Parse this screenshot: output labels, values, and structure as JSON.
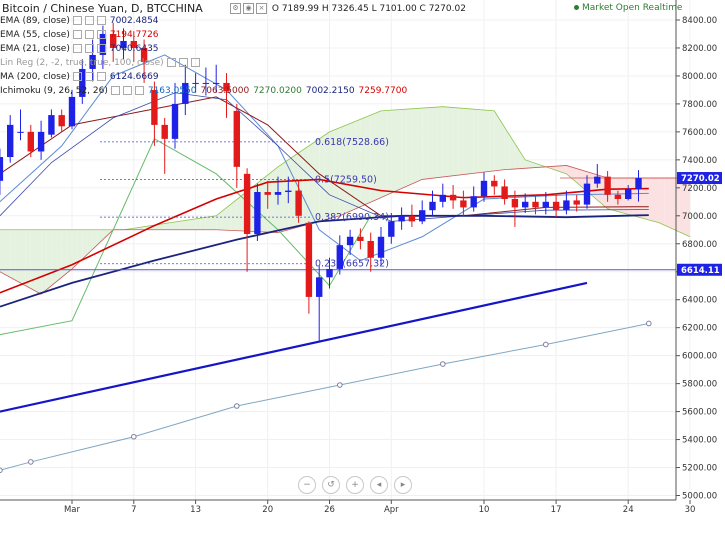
{
  "header": {
    "title": "Bitcoin / Chinese Yuan, D, BTCCHINA",
    "ohlc": "O 7189.99 H 7326.45 L 7101.00 C 7270.02",
    "status": "Market Open Realtime"
  },
  "legend": [
    {
      "label": "EMA (89, close)",
      "values": [
        "7002.4854"
      ],
      "colors": [
        "#1a237e"
      ]
    },
    {
      "label": "EMA (55, close)",
      "values": [
        "7194.7726"
      ],
      "colors": [
        "#d50000"
      ]
    },
    {
      "label": "EMA (21, close)",
      "values": [
        "7040.6435"
      ],
      "colors": [
        "#1a237e"
      ]
    },
    {
      "label": "Lin Reg (2, -2, true, true, 100, close)",
      "values": [],
      "colors": []
    },
    {
      "label": "MA (200, close)",
      "values": [
        "6124.6669"
      ],
      "colors": [
        "#1a237e"
      ]
    },
    {
      "label": "Ichimoku (9, 26, 52, 26)",
      "values": [
        "7163.0550",
        "7063.5000",
        "7270.0200",
        "7002.2150",
        "7259.7700"
      ],
      "colors": [
        "#1565c0",
        "#8b1a1a",
        "#2e7d32",
        "#1a237e",
        "#d50000"
      ]
    }
  ],
  "nav_buttons": [
    "minus-icon",
    "reset-icon",
    "plus-icon",
    "back-icon",
    "forward-icon"
  ],
  "colors": {
    "up": "#1e22e6",
    "down": "#e21a1a",
    "cloud_bull": "#e6f2e0",
    "cloud_bear": "#fbe1e1",
    "ema89": "#1a237e",
    "ema55": "#d50000",
    "ma200": "#7fa7c2",
    "trend": "#1414c8"
  },
  "chart_data": {
    "type": "candlestick",
    "y_axis": {
      "min": 5000,
      "max": 8400,
      "step": 200,
      "position": "right",
      "ticks": [
        "8400.00",
        "8200.00",
        "8000.00",
        "7800.00",
        "7600.00",
        "7400.00",
        "7200.00",
        "7000.00",
        "6800.00",
        "6600.00",
        "6400.00",
        "6200.00",
        "6000.00",
        "5800.00",
        "5600.00",
        "5400.00",
        "5200.00",
        "5000.00"
      ]
    },
    "x_axis": {
      "labels": [
        {
          "text": "Mar",
          "day": 0
        },
        {
          "text": "7",
          "day": 6
        },
        {
          "text": "13",
          "day": 12
        },
        {
          "text": "20",
          "day": 19
        },
        {
          "text": "26",
          "day": 25
        },
        {
          "text": "Apr",
          "day": 31
        },
        {
          "text": "10",
          "day": 40
        },
        {
          "text": "17",
          "day": 47
        },
        {
          "text": "24",
          "day": 54
        },
        {
          "text": "30",
          "day": 60
        }
      ]
    },
    "candles": [
      {
        "d": -7,
        "o": 7250,
        "c": 7420,
        "h": 7480,
        "l": 7150
      },
      {
        "d": -6,
        "o": 7420,
        "c": 7650,
        "h": 7720,
        "l": 7380
      },
      {
        "d": -5,
        "o": 7600,
        "c": 7600,
        "h": 7760,
        "l": 7540
      },
      {
        "d": -4,
        "o": 7600,
        "c": 7460,
        "h": 7650,
        "l": 7420
      },
      {
        "d": -3,
        "o": 7460,
        "c": 7600,
        "h": 7680,
        "l": 7400
      },
      {
        "d": -2,
        "o": 7580,
        "c": 7720,
        "h": 7760,
        "l": 7560
      },
      {
        "d": -1,
        "o": 7720,
        "c": 7640,
        "h": 7760,
        "l": 7600
      },
      {
        "d": 0,
        "o": 7640,
        "c": 7850,
        "h": 7900,
        "l": 7620
      },
      {
        "d": 1,
        "o": 7850,
        "c": 8050,
        "h": 8120,
        "l": 7800
      },
      {
        "d": 2,
        "o": 8050,
        "c": 8150,
        "h": 8260,
        "l": 7960
      },
      {
        "d": 3,
        "o": 8150,
        "c": 8300,
        "h": 8360,
        "l": 8050
      },
      {
        "d": 4,
        "o": 8300,
        "c": 8200,
        "h": 8380,
        "l": 8100
      },
      {
        "d": 5,
        "o": 8200,
        "c": 8250,
        "h": 8340,
        "l": 8120
      },
      {
        "d": 6,
        "o": 8250,
        "c": 8200,
        "h": 8320,
        "l": 8100
      },
      {
        "d": 7,
        "o": 8200,
        "c": 8100,
        "h": 8260,
        "l": 7950
      },
      {
        "d": 8,
        "o": 7900,
        "c": 7650,
        "h": 7960,
        "l": 7500
      },
      {
        "d": 9,
        "o": 7650,
        "c": 7550,
        "h": 7700,
        "l": 7300
      },
      {
        "d": 10,
        "o": 7550,
        "c": 7800,
        "h": 7950,
        "l": 7480
      },
      {
        "d": 11,
        "o": 7800,
        "c": 7950,
        "h": 8080,
        "l": 7720
      },
      {
        "d": 12,
        "o": 7950,
        "c": 7950,
        "h": 8020,
        "l": 7880
      },
      {
        "d": 13,
        "o": 7950,
        "c": 7950,
        "h": 8060,
        "l": 7860
      },
      {
        "d": 14,
        "o": 7950,
        "c": 7950,
        "h": 8080,
        "l": 7880
      },
      {
        "d": 15,
        "o": 7950,
        "c": 7890,
        "h": 8020,
        "l": 7700
      },
      {
        "d": 16,
        "o": 7750,
        "c": 7350,
        "h": 7800,
        "l": 7200
      },
      {
        "d": 17,
        "o": 7300,
        "c": 6870,
        "h": 7340,
        "l": 6600
      },
      {
        "d": 18,
        "o": 6870,
        "c": 7170,
        "h": 7230,
        "l": 6820
      },
      {
        "d": 19,
        "o": 7170,
        "c": 7150,
        "h": 7250,
        "l": 7050
      },
      {
        "d": 20,
        "o": 7150,
        "c": 7170,
        "h": 7280,
        "l": 7080
      },
      {
        "d": 21,
        "o": 7170,
        "c": 7180,
        "h": 7280,
        "l": 7090
      },
      {
        "d": 22,
        "o": 7180,
        "c": 7000,
        "h": 7250,
        "l": 6950
      },
      {
        "d": 23,
        "o": 6950,
        "c": 6420,
        "h": 6960,
        "l": 6300
      },
      {
        "d": 24,
        "o": 6420,
        "c": 6560,
        "h": 6640,
        "l": 6100
      },
      {
        "d": 25,
        "o": 6560,
        "c": 6620,
        "h": 6700,
        "l": 6480
      },
      {
        "d": 26,
        "o": 6620,
        "c": 6790,
        "h": 6860,
        "l": 6580
      },
      {
        "d": 27,
        "o": 6790,
        "c": 6850,
        "h": 6900,
        "l": 6720
      },
      {
        "d": 28,
        "o": 6850,
        "c": 6820,
        "h": 6910,
        "l": 6760
      },
      {
        "d": 29,
        "o": 6820,
        "c": 6700,
        "h": 6880,
        "l": 6600
      },
      {
        "d": 30,
        "o": 6700,
        "c": 6850,
        "h": 6920,
        "l": 6650
      },
      {
        "d": 31,
        "o": 6850,
        "c": 6960,
        "h": 7020,
        "l": 6800
      },
      {
        "d": 32,
        "o": 6960,
        "c": 7000,
        "h": 7060,
        "l": 6900
      },
      {
        "d": 33,
        "o": 7000,
        "c": 6960,
        "h": 7080,
        "l": 6920
      },
      {
        "d": 34,
        "o": 6960,
        "c": 7040,
        "h": 7110,
        "l": 6940
      },
      {
        "d": 35,
        "o": 7040,
        "c": 7100,
        "h": 7180,
        "l": 7000
      },
      {
        "d": 36,
        "o": 7100,
        "c": 7150,
        "h": 7230,
        "l": 7060
      },
      {
        "d": 37,
        "o": 7150,
        "c": 7110,
        "h": 7220,
        "l": 7050
      },
      {
        "d": 38,
        "o": 7110,
        "c": 7060,
        "h": 7180,
        "l": 7000
      },
      {
        "d": 39,
        "o": 7060,
        "c": 7140,
        "h": 7210,
        "l": 7030
      },
      {
        "d": 40,
        "o": 7140,
        "c": 7250,
        "h": 7310,
        "l": 7100
      },
      {
        "d": 41,
        "o": 7250,
        "c": 7210,
        "h": 7290,
        "l": 7150
      },
      {
        "d": 42,
        "o": 7210,
        "c": 7120,
        "h": 7260,
        "l": 7080
      },
      {
        "d": 43,
        "o": 7120,
        "c": 7060,
        "h": 7180,
        "l": 6920
      },
      {
        "d": 44,
        "o": 7060,
        "c": 7100,
        "h": 7160,
        "l": 7020
      },
      {
        "d": 45,
        "o": 7100,
        "c": 7060,
        "h": 7150,
        "l": 7010
      },
      {
        "d": 46,
        "o": 7060,
        "c": 7100,
        "h": 7170,
        "l": 7010
      },
      {
        "d": 47,
        "o": 7100,
        "c": 7040,
        "h": 7160,
        "l": 6990
      },
      {
        "d": 48,
        "o": 7040,
        "c": 7110,
        "h": 7180,
        "l": 7010
      },
      {
        "d": 49,
        "o": 7110,
        "c": 7080,
        "h": 7150,
        "l": 7030
      },
      {
        "d": 50,
        "o": 7080,
        "c": 7230,
        "h": 7290,
        "l": 7050
      },
      {
        "d": 51,
        "o": 7230,
        "c": 7280,
        "h": 7370,
        "l": 7200
      },
      {
        "d": 52,
        "o": 7280,
        "c": 7150,
        "h": 7320,
        "l": 7100
      },
      {
        "d": 53,
        "o": 7150,
        "c": 7120,
        "h": 7180,
        "l": 7080
      },
      {
        "d": 54,
        "o": 7120,
        "c": 7190,
        "h": 7220,
        "l": 7110
      },
      {
        "d": 55,
        "o": 7189.99,
        "c": 7270.02,
        "h": 7326.45,
        "l": 7101.0
      }
    ],
    "fib_levels": [
      {
        "label": "0.618(7528.66)",
        "value": 7528.66
      },
      {
        "label": "0.5(7259.50)",
        "value": 7259.5
      },
      {
        "label": "0.382(6990.34)",
        "value": 6990.34
      },
      {
        "label": "0.236(6657.32)",
        "value": 6657.32
      }
    ],
    "horizontal_line": 6614.11,
    "price_labels": [
      {
        "value": 7270.02,
        "text": "7270.02",
        "color": "#1e22e6"
      },
      {
        "value": 6614.11,
        "text": "6614.11",
        "color": "#1e22e6"
      }
    ],
    "trendline": {
      "from": {
        "d": -7,
        "v": 5600
      },
      "to": {
        "d": 50,
        "v": 6520
      }
    },
    "ma200": [
      {
        "d": -7,
        "v": 5180
      },
      {
        "d": -4,
        "v": 5240
      },
      {
        "d": 6,
        "v": 5420
      },
      {
        "d": 16,
        "v": 5640
      },
      {
        "d": 26,
        "v": 5790
      },
      {
        "d": 36,
        "v": 5940
      },
      {
        "d": 46,
        "v": 6080
      },
      {
        "d": 56,
        "v": 6230
      }
    ],
    "ema89": [
      {
        "d": -7,
        "v": 6350
      },
      {
        "d": 0,
        "v": 6520
      },
      {
        "d": 8,
        "v": 6680
      },
      {
        "d": 16,
        "v": 6830
      },
      {
        "d": 24,
        "v": 6960
      },
      {
        "d": 32,
        "v": 7000
      },
      {
        "d": 40,
        "v": 7000
      },
      {
        "d": 48,
        "v": 6990
      },
      {
        "d": 56,
        "v": 7005
      }
    ],
    "ema55": [
      {
        "d": -7,
        "v": 6450
      },
      {
        "d": 0,
        "v": 6650
      },
      {
        "d": 8,
        "v": 6930
      },
      {
        "d": 14,
        "v": 7120
      },
      {
        "d": 19,
        "v": 7240
      },
      {
        "d": 24,
        "v": 7260
      },
      {
        "d": 30,
        "v": 7180
      },
      {
        "d": 38,
        "v": 7130
      },
      {
        "d": 46,
        "v": 7150
      },
      {
        "d": 52,
        "v": 7190
      },
      {
        "d": 56,
        "v": 7195
      }
    ],
    "ema21": [
      {
        "d": -7,
        "v": 7000
      },
      {
        "d": -2,
        "v": 7380
      },
      {
        "d": 4,
        "v": 7700
      },
      {
        "d": 10,
        "v": 7880
      },
      {
        "d": 15,
        "v": 7830
      },
      {
        "d": 20,
        "v": 7500
      },
      {
        "d": 25,
        "v": 7150
      },
      {
        "d": 31,
        "v": 6960
      },
      {
        "d": 38,
        "v": 7000
      },
      {
        "d": 46,
        "v": 7040
      },
      {
        "d": 56,
        "v": 7045
      }
    ],
    "tenkan": [
      {
        "d": -7,
        "v": 7100
      },
      {
        "d": -1,
        "v": 7500
      },
      {
        "d": 4,
        "v": 8000
      },
      {
        "d": 9,
        "v": 8150
      },
      {
        "d": 15,
        "v": 7900
      },
      {
        "d": 20,
        "v": 7500
      },
      {
        "d": 24,
        "v": 6900
      },
      {
        "d": 28,
        "v": 6680
      },
      {
        "d": 34,
        "v": 6850
      },
      {
        "d": 40,
        "v": 7120
      },
      {
        "d": 48,
        "v": 7150
      },
      {
        "d": 56,
        "v": 7160
      }
    ],
    "kijun": [
      {
        "d": -7,
        "v": 7300
      },
      {
        "d": 0,
        "v": 7650
      },
      {
        "d": 7,
        "v": 7750
      },
      {
        "d": 14,
        "v": 7850
      },
      {
        "d": 19,
        "v": 7650
      },
      {
        "d": 24,
        "v": 7300
      },
      {
        "d": 30,
        "v": 7000
      },
      {
        "d": 38,
        "v": 7000
      },
      {
        "d": 46,
        "v": 7060
      },
      {
        "d": 56,
        "v": 7065
      }
    ],
    "cloud_a": [
      {
        "d": -7,
        "v": 6900
      },
      {
        "d": 5,
        "v": 6900
      },
      {
        "d": 14,
        "v": 7000
      },
      {
        "d": 20,
        "v": 7350
      },
      {
        "d": 25,
        "v": 7600
      },
      {
        "d": 30,
        "v": 7750
      },
      {
        "d": 36,
        "v": 7780
      },
      {
        "d": 41,
        "v": 7750
      },
      {
        "d": 44,
        "v": 7400
      },
      {
        "d": 48,
        "v": 7300
      },
      {
        "d": 52,
        "v": 7050
      },
      {
        "d": 57,
        "v": 6950
      },
      {
        "d": 60,
        "v": 6850
      }
    ],
    "cloud_b": [
      {
        "d": -7,
        "v": 6600
      },
      {
        "d": -3,
        "v": 6440
      },
      {
        "d": 0,
        "v": 6620
      },
      {
        "d": 4,
        "v": 6900
      },
      {
        "d": 14,
        "v": 6900
      },
      {
        "d": 20,
        "v": 6880
      },
      {
        "d": 26,
        "v": 7000
      },
      {
        "d": 34,
        "v": 7260
      },
      {
        "d": 42,
        "v": 7330
      },
      {
        "d": 48,
        "v": 7360
      },
      {
        "d": 52,
        "v": 7270
      },
      {
        "d": 57,
        "v": 7270
      },
      {
        "d": 60,
        "v": 7270
      }
    ],
    "chikou": [
      {
        "d": -7,
        "v": 6150
      },
      {
        "d": 0,
        "v": 6250
      },
      {
        "d": 8,
        "v": 7550
      },
      {
        "d": 14,
        "v": 7300
      },
      {
        "d": 20,
        "v": 6900
      },
      {
        "d": 25,
        "v": 6500
      },
      {
        "d": 29,
        "v": 7000
      }
    ]
  }
}
